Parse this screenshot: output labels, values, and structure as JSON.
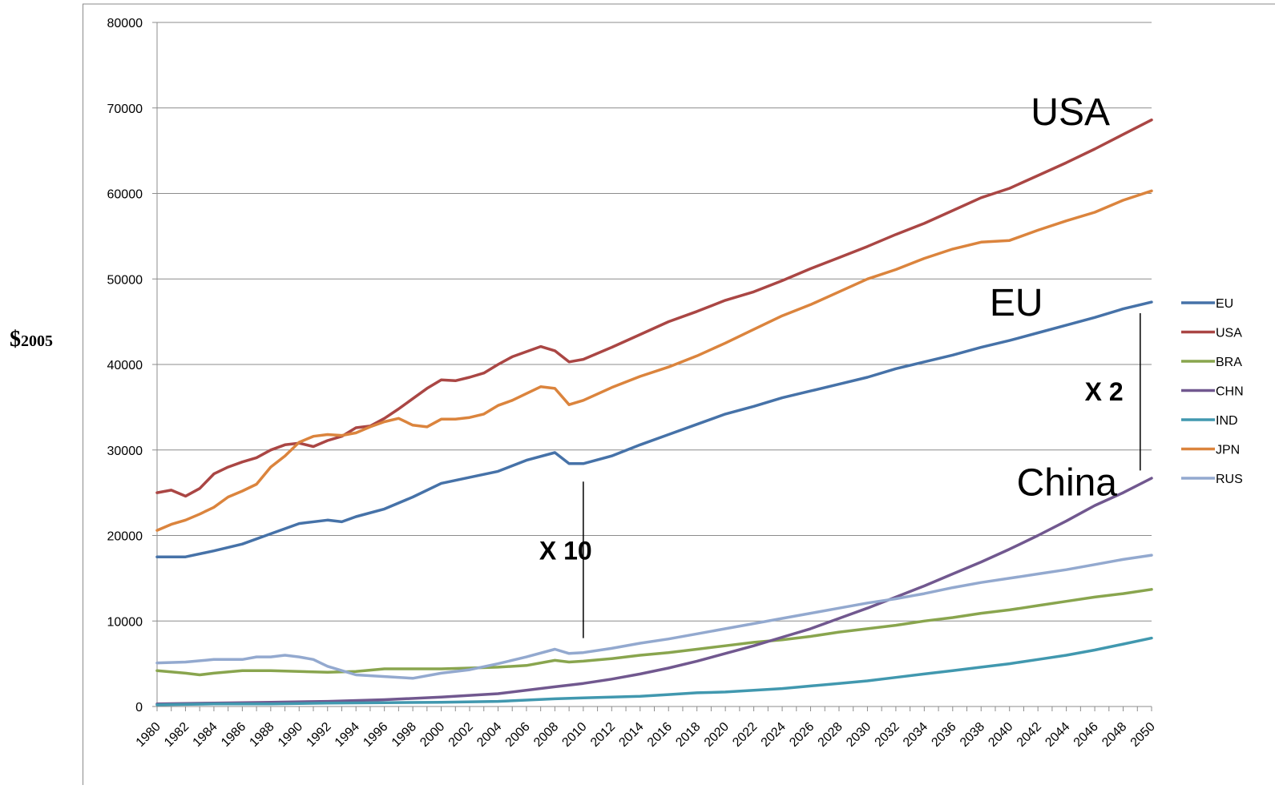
{
  "chart_data": {
    "type": "line",
    "title": "",
    "xlabel": "",
    "ylabel_symbol": "$",
    "ylabel_year": "2005",
    "ylim": [
      0,
      80000
    ],
    "yticks": [
      0,
      10000,
      20000,
      30000,
      40000,
      50000,
      60000,
      70000,
      80000
    ],
    "ytick_labels": [
      "0",
      "10000",
      "20000",
      "30000",
      "40000",
      "50000",
      "60000",
      "70000",
      "80000"
    ],
    "xlim": [
      1980,
      2050
    ],
    "xtick_labels": [
      "1980",
      "1982",
      "1984",
      "1986",
      "1988",
      "1990",
      "1992",
      "1994",
      "1996",
      "1998",
      "2000",
      "2002",
      "2004",
      "2006",
      "2008",
      "2010",
      "2012",
      "2014",
      "2016",
      "2018",
      "2020",
      "2022",
      "2024",
      "2026",
      "2028",
      "2030",
      "2032",
      "2034",
      "2036",
      "2038",
      "2040",
      "2042",
      "2044",
      "2046",
      "2048",
      "2050"
    ],
    "grid": "horizontal",
    "legend_position": "right",
    "series": [
      {
        "name": "EU",
        "color": "#4672a8",
        "points": [
          [
            1980,
            17500
          ],
          [
            1982,
            17500
          ],
          [
            1984,
            18200
          ],
          [
            1986,
            19000
          ],
          [
            1988,
            20200
          ],
          [
            1990,
            21400
          ],
          [
            1992,
            21800
          ],
          [
            1993,
            21600
          ],
          [
            1994,
            22200
          ],
          [
            1996,
            23100
          ],
          [
            1998,
            24500
          ],
          [
            2000,
            26100
          ],
          [
            2002,
            26800
          ],
          [
            2004,
            27500
          ],
          [
            2006,
            28800
          ],
          [
            2008,
            29700
          ],
          [
            2009,
            28400
          ],
          [
            2010,
            28400
          ],
          [
            2012,
            29300
          ],
          [
            2014,
            30600
          ],
          [
            2016,
            31800
          ],
          [
            2018,
            33000
          ],
          [
            2020,
            34200
          ],
          [
            2022,
            35100
          ],
          [
            2024,
            36100
          ],
          [
            2026,
            36900
          ],
          [
            2028,
            37700
          ],
          [
            2030,
            38500
          ],
          [
            2032,
            39500
          ],
          [
            2034,
            40300
          ],
          [
            2036,
            41100
          ],
          [
            2038,
            42000
          ],
          [
            2040,
            42800
          ],
          [
            2042,
            43700
          ],
          [
            2044,
            44600
          ],
          [
            2046,
            45500
          ],
          [
            2048,
            46500
          ],
          [
            2050,
            47300
          ]
        ]
      },
      {
        "name": "USA",
        "color": "#aa4644",
        "points": [
          [
            1980,
            25000
          ],
          [
            1981,
            25300
          ],
          [
            1982,
            24600
          ],
          [
            1983,
            25500
          ],
          [
            1984,
            27200
          ],
          [
            1985,
            28000
          ],
          [
            1986,
            28600
          ],
          [
            1987,
            29100
          ],
          [
            1988,
            30000
          ],
          [
            1989,
            30600
          ],
          [
            1990,
            30800
          ],
          [
            1991,
            30400
          ],
          [
            1992,
            31100
          ],
          [
            1993,
            31600
          ],
          [
            1994,
            32600
          ],
          [
            1995,
            32800
          ],
          [
            1996,
            33700
          ],
          [
            1997,
            34800
          ],
          [
            1998,
            36000
          ],
          [
            1999,
            37200
          ],
          [
            2000,
            38200
          ],
          [
            2001,
            38100
          ],
          [
            2002,
            38500
          ],
          [
            2003,
            39000
          ],
          [
            2004,
            40000
          ],
          [
            2005,
            40900
          ],
          [
            2006,
            41500
          ],
          [
            2007,
            42100
          ],
          [
            2008,
            41600
          ],
          [
            2009,
            40300
          ],
          [
            2010,
            40600
          ],
          [
            2012,
            42000
          ],
          [
            2014,
            43500
          ],
          [
            2016,
            45000
          ],
          [
            2018,
            46200
          ],
          [
            2020,
            47500
          ],
          [
            2022,
            48500
          ],
          [
            2024,
            49800
          ],
          [
            2026,
            51200
          ],
          [
            2028,
            52500
          ],
          [
            2030,
            53800
          ],
          [
            2032,
            55200
          ],
          [
            2034,
            56500
          ],
          [
            2036,
            58000
          ],
          [
            2038,
            59500
          ],
          [
            2040,
            60600
          ],
          [
            2042,
            62100
          ],
          [
            2044,
            63600
          ],
          [
            2046,
            65200
          ],
          [
            2048,
            66900
          ],
          [
            2050,
            68600
          ]
        ]
      },
      {
        "name": "BRA",
        "color": "#89a54e",
        "points": [
          [
            1980,
            4200
          ],
          [
            1982,
            3900
          ],
          [
            1983,
            3700
          ],
          [
            1984,
            3900
          ],
          [
            1986,
            4200
          ],
          [
            1988,
            4200
          ],
          [
            1990,
            4100
          ],
          [
            1992,
            4000
          ],
          [
            1994,
            4100
          ],
          [
            1996,
            4400
          ],
          [
            1998,
            4400
          ],
          [
            2000,
            4400
          ],
          [
            2002,
            4500
          ],
          [
            2004,
            4600
          ],
          [
            2006,
            4800
          ],
          [
            2008,
            5400
          ],
          [
            2009,
            5200
          ],
          [
            2010,
            5300
          ],
          [
            2012,
            5600
          ],
          [
            2014,
            6000
          ],
          [
            2016,
            6300
          ],
          [
            2018,
            6700
          ],
          [
            2020,
            7100
          ],
          [
            2022,
            7500
          ],
          [
            2024,
            7800
          ],
          [
            2026,
            8200
          ],
          [
            2028,
            8700
          ],
          [
            2030,
            9100
          ],
          [
            2032,
            9500
          ],
          [
            2034,
            10000
          ],
          [
            2036,
            10400
          ],
          [
            2038,
            10900
          ],
          [
            2040,
            11300
          ],
          [
            2042,
            11800
          ],
          [
            2044,
            12300
          ],
          [
            2046,
            12800
          ],
          [
            2048,
            13200
          ],
          [
            2050,
            13700
          ]
        ]
      },
      {
        "name": "CHN",
        "color": "#71588f",
        "points": [
          [
            1980,
            300
          ],
          [
            1984,
            400
          ],
          [
            1988,
            500
          ],
          [
            1992,
            600
          ],
          [
            1996,
            800
          ],
          [
            2000,
            1100
          ],
          [
            2004,
            1500
          ],
          [
            2008,
            2300
          ],
          [
            2010,
            2700
          ],
          [
            2012,
            3200
          ],
          [
            2014,
            3800
          ],
          [
            2016,
            4500
          ],
          [
            2018,
            5300
          ],
          [
            2020,
            6200
          ],
          [
            2022,
            7100
          ],
          [
            2024,
            8100
          ],
          [
            2026,
            9100
          ],
          [
            2028,
            10300
          ],
          [
            2030,
            11500
          ],
          [
            2032,
            12800
          ],
          [
            2034,
            14100
          ],
          [
            2036,
            15500
          ],
          [
            2038,
            16900
          ],
          [
            2040,
            18400
          ],
          [
            2042,
            20000
          ],
          [
            2044,
            21700
          ],
          [
            2046,
            23500
          ],
          [
            2048,
            25000
          ],
          [
            2050,
            26700
          ]
        ]
      },
      {
        "name": "IND",
        "color": "#4198af",
        "points": [
          [
            1980,
            200
          ],
          [
            1984,
            300
          ],
          [
            1988,
            300
          ],
          [
            1992,
            400
          ],
          [
            1996,
            450
          ],
          [
            2000,
            500
          ],
          [
            2004,
            600
          ],
          [
            2008,
            900
          ],
          [
            2010,
            1000
          ],
          [
            2012,
            1100
          ],
          [
            2014,
            1200
          ],
          [
            2016,
            1400
          ],
          [
            2018,
            1600
          ],
          [
            2020,
            1700
          ],
          [
            2022,
            1900
          ],
          [
            2024,
            2100
          ],
          [
            2026,
            2400
          ],
          [
            2028,
            2700
          ],
          [
            2030,
            3000
          ],
          [
            2032,
            3400
          ],
          [
            2034,
            3800
          ],
          [
            2036,
            4200
          ],
          [
            2038,
            4600
          ],
          [
            2040,
            5000
          ],
          [
            2042,
            5500
          ],
          [
            2044,
            6000
          ],
          [
            2046,
            6600
          ],
          [
            2048,
            7300
          ],
          [
            2050,
            8000
          ]
        ]
      },
      {
        "name": "JPN",
        "color": "#db843d",
        "points": [
          [
            1980,
            20600
          ],
          [
            1981,
            21300
          ],
          [
            1982,
            21800
          ],
          [
            1983,
            22500
          ],
          [
            1984,
            23300
          ],
          [
            1985,
            24500
          ],
          [
            1986,
            25200
          ],
          [
            1987,
            26000
          ],
          [
            1988,
            28000
          ],
          [
            1989,
            29300
          ],
          [
            1990,
            30900
          ],
          [
            1991,
            31600
          ],
          [
            1992,
            31800
          ],
          [
            1993,
            31700
          ],
          [
            1994,
            32000
          ],
          [
            1995,
            32700
          ],
          [
            1996,
            33300
          ],
          [
            1997,
            33700
          ],
          [
            1998,
            32900
          ],
          [
            1999,
            32700
          ],
          [
            2000,
            33600
          ],
          [
            2001,
            33600
          ],
          [
            2002,
            33800
          ],
          [
            2003,
            34200
          ],
          [
            2004,
            35200
          ],
          [
            2005,
            35800
          ],
          [
            2006,
            36600
          ],
          [
            2007,
            37400
          ],
          [
            2008,
            37200
          ],
          [
            2009,
            35300
          ],
          [
            2010,
            35800
          ],
          [
            2012,
            37300
          ],
          [
            2014,
            38600
          ],
          [
            2016,
            39700
          ],
          [
            2018,
            41000
          ],
          [
            2020,
            42500
          ],
          [
            2022,
            44100
          ],
          [
            2024,
            45700
          ],
          [
            2026,
            47000
          ],
          [
            2028,
            48500
          ],
          [
            2030,
            50000
          ],
          [
            2032,
            51100
          ],
          [
            2034,
            52400
          ],
          [
            2036,
            53500
          ],
          [
            2038,
            54300
          ],
          [
            2040,
            54500
          ],
          [
            2042,
            55700
          ],
          [
            2044,
            56800
          ],
          [
            2046,
            57800
          ],
          [
            2048,
            59200
          ],
          [
            2050,
            60300
          ]
        ]
      },
      {
        "name": "RUS",
        "color": "#93a9cf",
        "points": [
          [
            1980,
            5100
          ],
          [
            1982,
            5200
          ],
          [
            1984,
            5500
          ],
          [
            1986,
            5500
          ],
          [
            1987,
            5800
          ],
          [
            1988,
            5800
          ],
          [
            1989,
            6000
          ],
          [
            1990,
            5800
          ],
          [
            1991,
            5500
          ],
          [
            1992,
            4700
          ],
          [
            1993,
            4200
          ],
          [
            1994,
            3700
          ],
          [
            1996,
            3500
          ],
          [
            1998,
            3300
          ],
          [
            2000,
            3900
          ],
          [
            2002,
            4300
          ],
          [
            2004,
            5000
          ],
          [
            2006,
            5800
          ],
          [
            2008,
            6700
          ],
          [
            2009,
            6200
          ],
          [
            2010,
            6300
          ],
          [
            2012,
            6800
          ],
          [
            2014,
            7400
          ],
          [
            2016,
            7900
          ],
          [
            2018,
            8500
          ],
          [
            2020,
            9100
          ],
          [
            2022,
            9700
          ],
          [
            2024,
            10300
          ],
          [
            2026,
            10900
          ],
          [
            2028,
            11500
          ],
          [
            2030,
            12100
          ],
          [
            2032,
            12600
          ],
          [
            2034,
            13200
          ],
          [
            2036,
            13900
          ],
          [
            2038,
            14500
          ],
          [
            2040,
            15000
          ],
          [
            2042,
            15500
          ],
          [
            2044,
            16000
          ],
          [
            2046,
            16600
          ],
          [
            2048,
            17200
          ],
          [
            2050,
            17700
          ]
        ]
      }
    ],
    "annotations": [
      {
        "text": "USA",
        "x": 2041.5,
        "y": 68000,
        "font_size": 48,
        "bold": false
      },
      {
        "text": "EU",
        "x": 2038.6,
        "y": 45700,
        "font_size": 48,
        "bold": false
      },
      {
        "text": "China",
        "x": 2040.5,
        "y": 24700,
        "font_size": 48,
        "bold": false
      },
      {
        "text": "X 10",
        "x": 2006.9,
        "y": 17200,
        "font_size": 32,
        "bold": true
      },
      {
        "text": "X 2",
        "x": 2045.3,
        "y": 35800,
        "font_size": 32,
        "bold": true
      }
    ],
    "reference_lines": [
      {
        "name": "gap-2010",
        "x": 2010,
        "y1": 8000,
        "y2": 26300
      },
      {
        "name": "gap-2049",
        "x": 2049.2,
        "y1": 27600,
        "y2": 46000
      }
    ]
  }
}
